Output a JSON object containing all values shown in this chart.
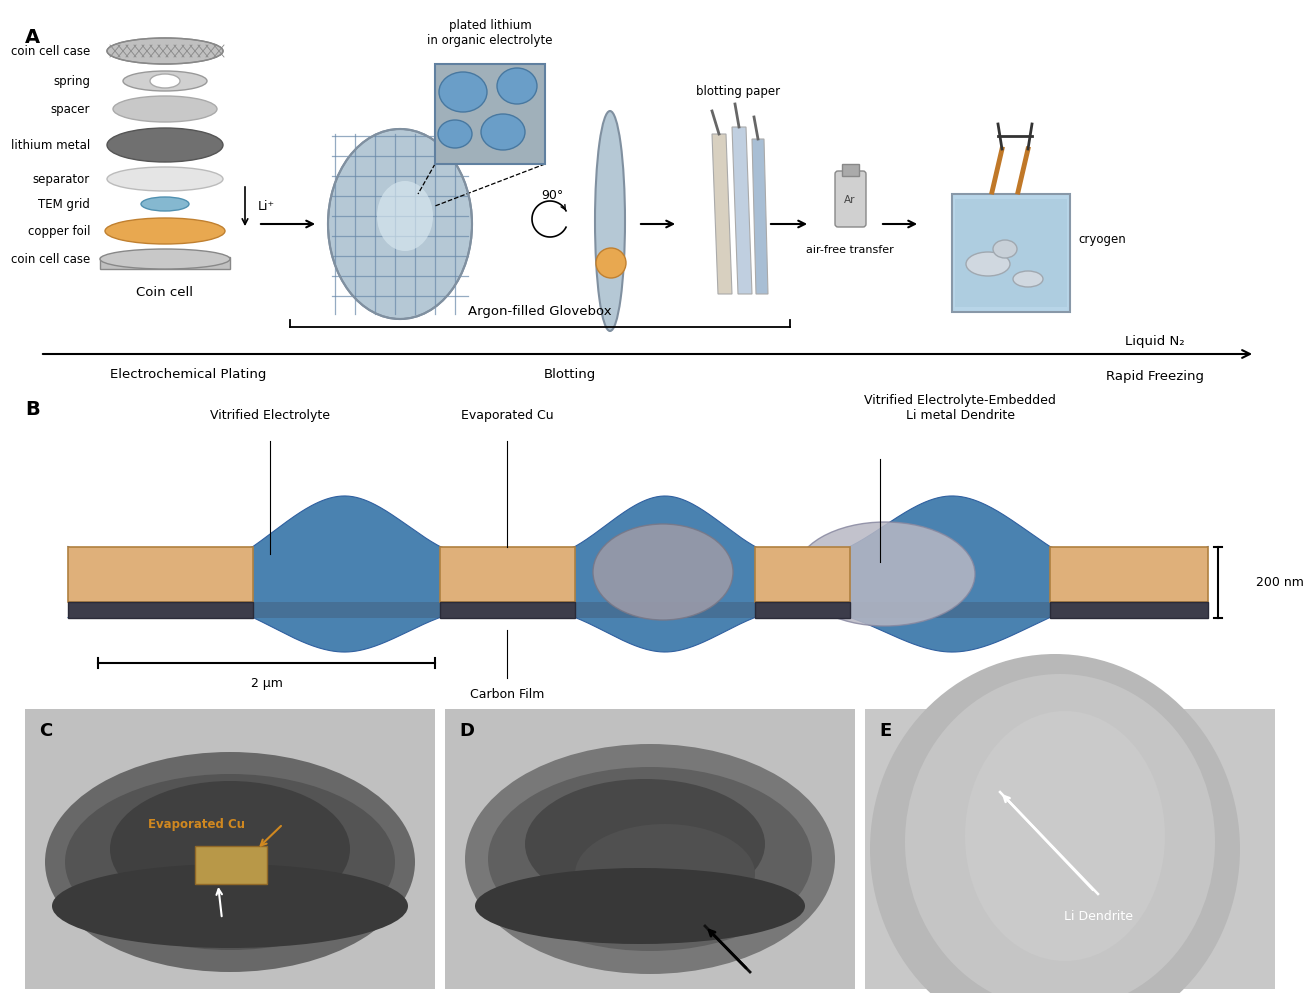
{
  "background_color": "#ffffff",
  "panel_A": {
    "label": "A",
    "coin_cell_labels": [
      "coin cell case",
      "spring",
      "spacer",
      "lithium metal",
      "separator",
      "TEM grid",
      "copper foil",
      "coin cell case"
    ],
    "coin_cell_bottom_label": "Coin cell",
    "li_ion_label": "Li⁺",
    "plated_li_label": "plated lithium\nin organic electrolyte",
    "rotation_label": "90°",
    "blotting_label": "blotting paper",
    "air_free_label": "air-free transfer",
    "cryogen_label": "cryogen",
    "argon_label": "Argon-filled Glovebox",
    "liquid_n2_label": "Liquid N₂",
    "ec_plating_label": "Electrochemical Plating",
    "blotting_step_label": "Blotting",
    "rapid_freezing_label": "Rapid Freezing"
  },
  "panel_B": {
    "label": "B",
    "label_vitrified_electrolyte": "Vitrified Electrolyte",
    "label_evaporated_cu": "Evaporated Cu",
    "label_vitrified_embedded": "Vitrified Electrolyte-Embedded\nLi metal Dendrite",
    "label_carbon_film": "Carbon Film",
    "scale_200nm": "200 nm",
    "scale_2um": "2 μm",
    "color_cu": "#DFB07A",
    "color_electrolyte": "#4A82B0",
    "color_carbon": "#3C3C4A",
    "color_dendrite1": "#9A9AA8",
    "color_dendrite2": "#B8B8C4"
  },
  "panel_C": {
    "label": "C",
    "annotation": "Evaporated Cu"
  },
  "panel_D": {
    "label": "D"
  },
  "panel_E": {
    "label": "E",
    "annotation": "Li Dendrite"
  }
}
